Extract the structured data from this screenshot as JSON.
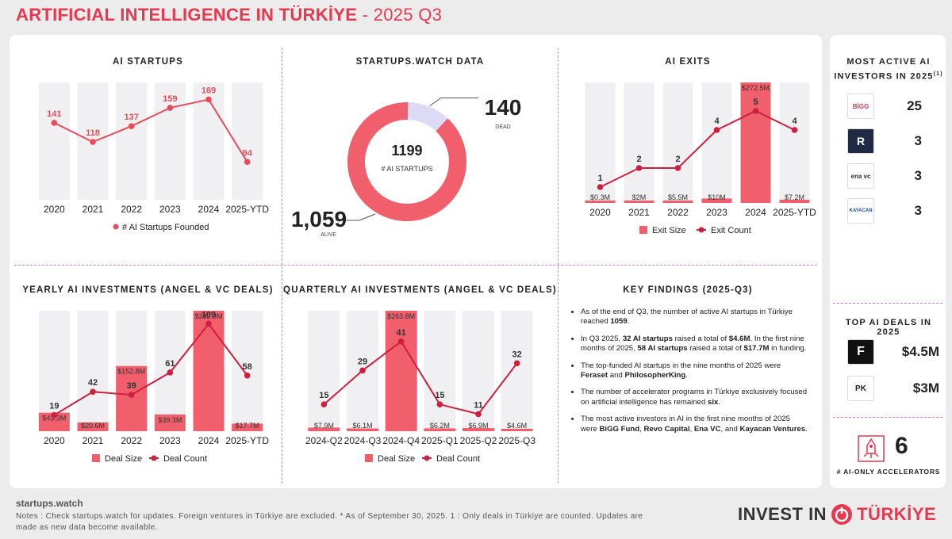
{
  "header": {
    "title": "ARTIFICIAL INTELLIGENCE IN TÜRKİYE",
    "period": " - 2025 Q3"
  },
  "colors": {
    "accent": "#e8374f",
    "bar": "#f25f6c",
    "bg_bar": "#f0f0f2",
    "donut_dead": "#dcdaf5"
  },
  "chart_data": [
    {
      "type": "line",
      "title": "AI STARTUPS",
      "categories": [
        "2020",
        "2021",
        "2022",
        "2023",
        "2024",
        "2025-YTD"
      ],
      "series": [
        {
          "name": "# AI Startups Founded",
          "values": [
            141,
            118,
            137,
            159,
            169,
            94
          ]
        }
      ]
    },
    {
      "type": "pie",
      "title": "STARTUPS.WATCH DATA",
      "center_value": "1199",
      "center_label": "# AI STARTUPS",
      "slices": [
        {
          "name": "ALIVE",
          "value": 1059,
          "label": "1,059"
        },
        {
          "name": "DEAD",
          "value": 140,
          "label": "140"
        }
      ]
    },
    {
      "type": "bar",
      "title": "AI EXITS",
      "categories": [
        "2020",
        "2021",
        "2022",
        "2023",
        "2024",
        "2025-YTD"
      ],
      "series": [
        {
          "name": "Exit Size",
          "values": [
            0.3,
            2,
            5.5,
            10,
            272.5,
            7.2
          ],
          "labels": [
            "$0.3M",
            "$2M",
            "$5.5M",
            "$10M",
            "$272.5M",
            "$7.2M"
          ]
        },
        {
          "name": "Exit Count",
          "values": [
            1,
            2,
            2,
            4,
            5,
            4
          ]
        }
      ]
    },
    {
      "type": "bar",
      "title": "YEARLY AI INVESTMENTS (ANGEL & VC DEALS)",
      "categories": [
        "2020",
        "2021",
        "2022",
        "2023",
        "2024",
        "2025-YTD"
      ],
      "series": [
        {
          "name": "Deal Size",
          "values": [
            43.3,
            20.6,
            152.8,
            39.3,
            282.3,
            17.7
          ],
          "labels": [
            "$43.3M",
            "$20.6M",
            "$152.8M",
            "$39.3M",
            "$282.3M",
            "$17.7M"
          ]
        },
        {
          "name": "Deal Count",
          "values": [
            19,
            42,
            39,
            61,
            109,
            58
          ]
        }
      ]
    },
    {
      "type": "bar",
      "title": "QUARTERLY AI INVESTMENTS (ANGEL & VC DEALS)",
      "categories": [
        "2024-Q2",
        "2024-Q3",
        "2024-Q4",
        "2025-Q1",
        "2025-Q2",
        "2025-Q3"
      ],
      "series": [
        {
          "name": "Deal Size",
          "values": [
            7.9,
            6.1,
            263.8,
            6.2,
            6.9,
            4.6
          ],
          "labels": [
            "$7.9M",
            "$6.1M",
            "$263.8M",
            "$6.2M",
            "$6.9M",
            "$4.6M"
          ]
        },
        {
          "name": "Deal Count",
          "values": [
            15,
            29,
            41,
            15,
            11,
            32
          ]
        }
      ]
    }
  ],
  "key_findings": {
    "title": "KEY FINDINGS (2025-Q3)"
  },
  "investors": {
    "title": "MOST ACTIVE AI INVESTORS IN 2025",
    "sup": "(1)",
    "items": [
      {
        "logo": "BİGG",
        "count": "25"
      },
      {
        "logo": "R",
        "count": "3"
      },
      {
        "logo": "ena vc",
        "count": "3"
      },
      {
        "logo": "KAYACAN",
        "count": "3"
      }
    ]
  },
  "top_deals": {
    "title": "TOP AI DEALS IN 2025",
    "items": [
      {
        "logo": "F",
        "amount": "$4.5M"
      },
      {
        "logo": "PK",
        "amount": "$3M"
      }
    ]
  },
  "accelerators": {
    "count": "6",
    "label": "# AI-ONLY ACCELERATORS"
  },
  "footer": {
    "site": "startups.watch",
    "notes": "Notes : Check startups.watch for updates. Foreign ventures in Türkiye are excluded. * As of September 30, 2025. 1 : Only deals in Türkiye are counted. Updates are made as new data become available.",
    "brand_a": "INVEST IN",
    "brand_b": "TÜRKİYE"
  }
}
